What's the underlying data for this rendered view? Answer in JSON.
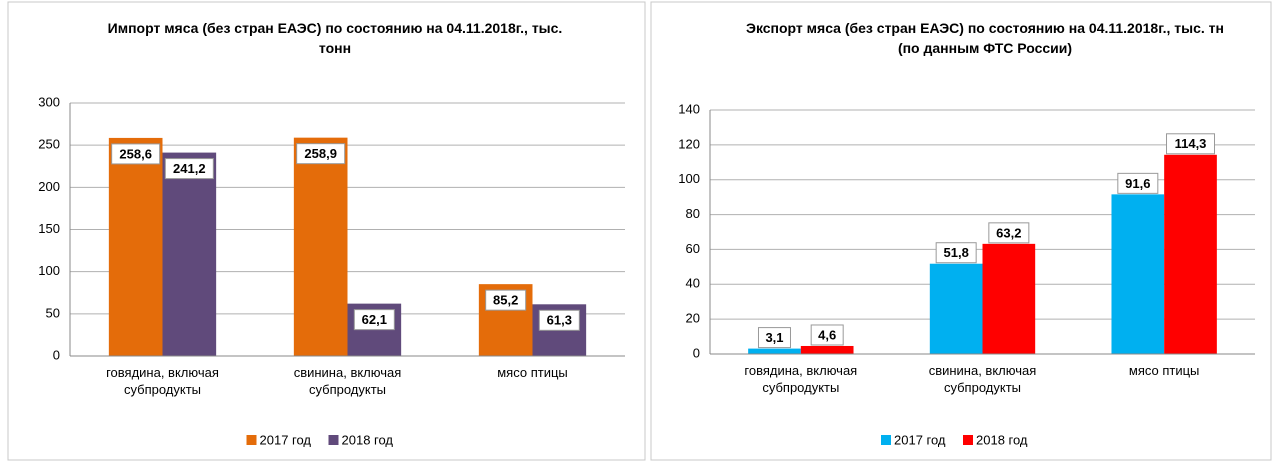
{
  "chart_data": [
    {
      "type": "bar",
      "title": "Импорт мяса (без стран ЕАЭС) по состоянию на 04.11.2018г., тыс. тонн",
      "categories": [
        "говядина, включая субпродукты",
        "свинина, включая субпродукты",
        "мясо птицы"
      ],
      "series": [
        {
          "name": "2017 год",
          "color": "#e46c0a",
          "values": [
            258.6,
            258.9,
            85.2
          ],
          "value_labels": [
            "258,6",
            "258,9",
            "85,2"
          ]
        },
        {
          "name": "2018 год",
          "color": "#604a7b",
          "values": [
            241.2,
            62.1,
            61.3
          ],
          "value_labels": [
            "241,2",
            "62,1",
            "61,3"
          ]
        }
      ],
      "ylim": [
        0,
        300
      ],
      "yticks": [
        0,
        50,
        100,
        150,
        200,
        250,
        300
      ],
      "grid": true,
      "legend": "bottom"
    },
    {
      "type": "bar",
      "title": "Экспорт мяса (без стран ЕАЭС) по состоянию на 04.11.2018г., тыс. тн (по данным ФТС России)",
      "categories": [
        "говядина, включая субпродукты",
        "свинина, включая субпродукты",
        "мясо птицы"
      ],
      "series": [
        {
          "name": "2017 год",
          "color": "#00b0f0",
          "values": [
            3.1,
            51.8,
            91.6
          ],
          "value_labels": [
            "3,1",
            "51,8",
            "91,6"
          ]
        },
        {
          "name": "2018 год",
          "color": "#ff0000",
          "values": [
            4.6,
            63.2,
            114.3
          ],
          "value_labels": [
            "4,6",
            "63,2",
            "114,3"
          ]
        }
      ],
      "ylim": [
        0,
        140
      ],
      "yticks": [
        0,
        20,
        40,
        60,
        80,
        100,
        120,
        140
      ],
      "grid": true,
      "legend": "bottom"
    }
  ]
}
